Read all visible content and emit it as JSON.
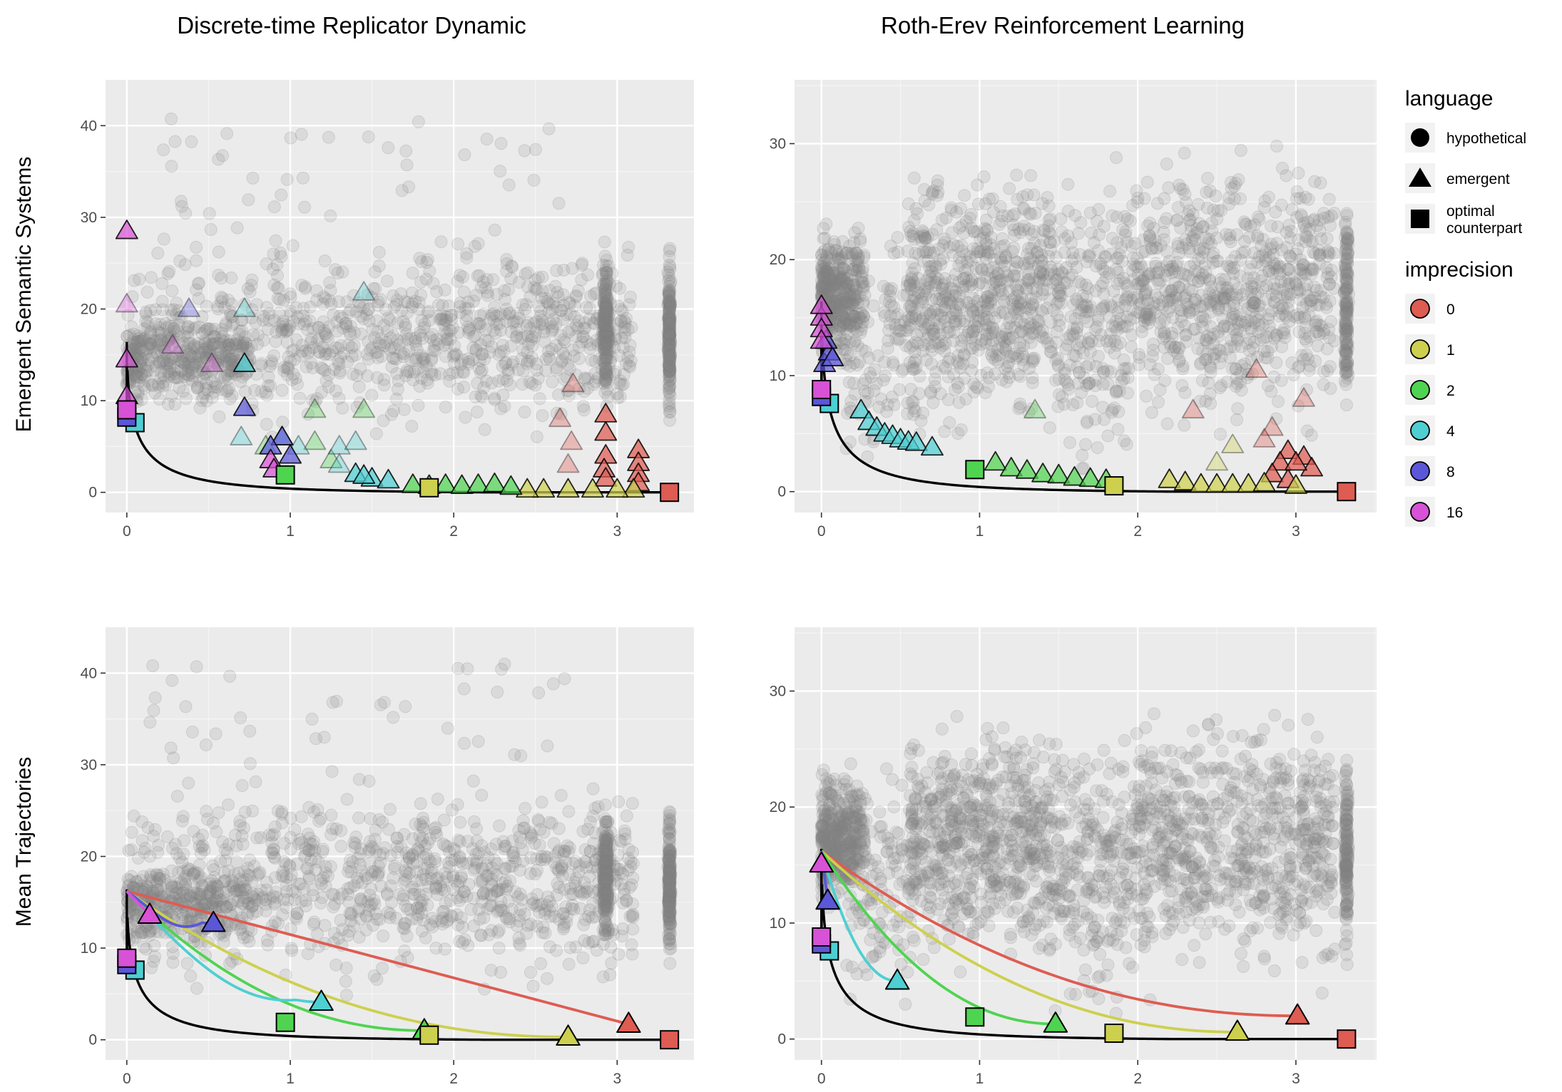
{
  "figure": {
    "column_titles": [
      "Discrete-time Replicator Dynamic",
      "Roth-Erev Reinforcement Learning"
    ],
    "row_titles": [
      "Emergent Semantic Systems",
      "Mean Trajectories"
    ]
  },
  "legend": {
    "language": {
      "title": "language",
      "items": [
        {
          "label": "hypothetical",
          "shape": "circle"
        },
        {
          "label": "emergent",
          "shape": "triangle"
        },
        {
          "label": "optimal counterpart",
          "lines": [
            "optimal",
            "counterpart"
          ],
          "shape": "square"
        }
      ]
    },
    "imprecision": {
      "title": "imprecision",
      "items": [
        {
          "label": "0",
          "color": "#DE5C52"
        },
        {
          "label": "1",
          "color": "#CDD04E"
        },
        {
          "label": "2",
          "color": "#4FD451"
        },
        {
          "label": "4",
          "color": "#4ECFD2"
        },
        {
          "label": "8",
          "color": "#5B57D8"
        },
        {
          "label": "16",
          "color": "#D752D6"
        }
      ]
    }
  },
  "colors": {
    "panel_background": "#EBEBEB",
    "grid": "#FFFFFF",
    "hypothetical_points": "#808080",
    "frontier_curve": "#000000"
  },
  "chart_data": [
    {
      "panel": "Discrete-time Replicator Dynamic / Emergent Semantic Systems",
      "type": "scatter",
      "xlim": [
        -0.13,
        3.47
      ],
      "ylim": [
        -2.2,
        45
      ],
      "xticks": [
        0,
        1,
        2,
        3
      ],
      "yticks": [
        0,
        10,
        20,
        30,
        40
      ],
      "cloud": "dr",
      "frontier": true,
      "optimal": [
        [
          3.32,
          0,
          0
        ],
        [
          1.85,
          0.5,
          1
        ],
        [
          0.97,
          1.9,
          2
        ],
        [
          0.05,
          7.6,
          4
        ],
        [
          0.0,
          8.2,
          8
        ],
        [
          0.0,
          9.0,
          16
        ]
      ],
      "emergent": [
        [
          2.93,
          6.5,
          0
        ],
        [
          2.93,
          8.5,
          0
        ],
        [
          2.93,
          4,
          0
        ],
        [
          2.92,
          2.5,
          0
        ],
        [
          2.93,
          1.5,
          0
        ],
        [
          3.13,
          4.6,
          0
        ],
        [
          3.13,
          3.2,
          0
        ],
        [
          3.13,
          2,
          0
        ],
        [
          3.13,
          1,
          0
        ],
        [
          2.73,
          11.8,
          0
        ],
        [
          2.65,
          8,
          0
        ],
        [
          2.72,
          5.5,
          0
        ],
        [
          2.7,
          3,
          0
        ],
        [
          3.1,
          0.3,
          1
        ],
        [
          3.0,
          0.3,
          1
        ],
        [
          2.85,
          0.3,
          1
        ],
        [
          2.7,
          0.3,
          1
        ],
        [
          2.55,
          0.3,
          1
        ],
        [
          2.45,
          0.3,
          1
        ],
        [
          1.75,
          0.8,
          2
        ],
        [
          1.85,
          0.7,
          2
        ],
        [
          1.95,
          0.8,
          2
        ],
        [
          2.05,
          0.7,
          2
        ],
        [
          2.15,
          0.8,
          2
        ],
        [
          2.25,
          0.9,
          2
        ],
        [
          2.35,
          0.6,
          2
        ],
        [
          1.15,
          9,
          2
        ],
        [
          1.45,
          9,
          2
        ],
        [
          1.15,
          5.5,
          2
        ],
        [
          0.85,
          5,
          2
        ],
        [
          1.25,
          3.5,
          2
        ],
        [
          1.45,
          21.8,
          4
        ],
        [
          0.72,
          20,
          4
        ],
        [
          0.72,
          14,
          4
        ],
        [
          0.7,
          6,
          4
        ],
        [
          0.95,
          6,
          4
        ],
        [
          1.05,
          5,
          4
        ],
        [
          1.3,
          5,
          4
        ],
        [
          1.4,
          5.5,
          4
        ],
        [
          1.3,
          3,
          4
        ],
        [
          1.4,
          2,
          4
        ],
        [
          1.5,
          1.5,
          4
        ],
        [
          1.6,
          1.3,
          4
        ],
        [
          1.45,
          1.8,
          4
        ],
        [
          0.38,
          20,
          8
        ],
        [
          0.72,
          9.2,
          8
        ],
        [
          0.95,
          6,
          8
        ],
        [
          0.88,
          5,
          8
        ],
        [
          1.0,
          4,
          8
        ],
        [
          0.0,
          28.5,
          16
        ],
        [
          0.0,
          20.5,
          16
        ],
        [
          0.0,
          14.5,
          16
        ],
        [
          0.0,
          10.5,
          16
        ],
        [
          0.28,
          16,
          16
        ],
        [
          0.52,
          14,
          16
        ],
        [
          0.88,
          3.5,
          16
        ],
        [
          0.9,
          2.5,
          16
        ]
      ],
      "faded_emergent": [
        [
          2.73,
          11.8,
          0
        ],
        [
          2.65,
          8,
          0
        ],
        [
          2.72,
          5.5,
          0
        ],
        [
          2.7,
          3,
          0
        ],
        [
          1.15,
          9,
          2
        ],
        [
          1.45,
          9,
          2
        ],
        [
          1.15,
          5.5,
          2
        ],
        [
          0.85,
          5,
          2
        ],
        [
          1.25,
          3.5,
          2
        ],
        [
          1.45,
          21.8,
          4
        ],
        [
          0.72,
          20,
          4
        ],
        [
          0.7,
          6,
          4
        ],
        [
          0.95,
          6,
          4
        ],
        [
          1.05,
          5,
          4
        ],
        [
          1.3,
          5,
          4
        ],
        [
          1.4,
          5.5,
          4
        ],
        [
          1.3,
          3,
          4
        ],
        [
          0.38,
          20,
          8
        ],
        [
          0.0,
          20.5,
          16
        ],
        [
          0.28,
          16,
          16
        ],
        [
          0.52,
          14,
          16
        ]
      ]
    },
    {
      "panel": "Roth-Erev Reinforcement Learning / Emergent Semantic Systems",
      "type": "scatter",
      "xlim": [
        -0.17,
        3.51
      ],
      "ylim": [
        -1.8,
        35.5
      ],
      "xticks": [
        0,
        1,
        2,
        3
      ],
      "yticks": [
        0,
        10,
        20,
        30
      ],
      "cloud": "re",
      "frontier": true,
      "optimal": [
        [
          3.32,
          0,
          0
        ],
        [
          1.85,
          0.5,
          1
        ],
        [
          0.97,
          1.9,
          2
        ],
        [
          0.05,
          7.6,
          4
        ],
        [
          0.0,
          8.2,
          8
        ],
        [
          0.0,
          8.8,
          16
        ]
      ],
      "emergent": [
        [
          2.75,
          10.5,
          0
        ],
        [
          2.35,
          7,
          0
        ],
        [
          3.05,
          8,
          0
        ],
        [
          2.85,
          5.5,
          0
        ],
        [
          2.8,
          4.5,
          0
        ],
        [
          2.95,
          3.5,
          0
        ],
        [
          3.05,
          3,
          0
        ],
        [
          2.9,
          2.5,
          0
        ],
        [
          3.1,
          2,
          0
        ],
        [
          2.85,
          1.5,
          0
        ],
        [
          2.95,
          1,
          0
        ],
        [
          3.0,
          2.5,
          0
        ],
        [
          2.6,
          4,
          1
        ],
        [
          2.5,
          2.5,
          1
        ],
        [
          2.2,
          1,
          1
        ],
        [
          2.3,
          0.8,
          1
        ],
        [
          2.4,
          0.6,
          1
        ],
        [
          2.5,
          0.6,
          1
        ],
        [
          2.6,
          0.6,
          1
        ],
        [
          2.7,
          0.6,
          1
        ],
        [
          2.8,
          0.7,
          1
        ],
        [
          3.0,
          0.5,
          1
        ],
        [
          1.1,
          2.5,
          2
        ],
        [
          1.2,
          2,
          2
        ],
        [
          1.3,
          1.8,
          2
        ],
        [
          1.4,
          1.5,
          2
        ],
        [
          1.5,
          1.4,
          2
        ],
        [
          1.6,
          1.2,
          2
        ],
        [
          1.7,
          1.1,
          2
        ],
        [
          1.8,
          1.0,
          2
        ],
        [
          1.35,
          7,
          2
        ],
        [
          0.25,
          7,
          4
        ],
        [
          0.3,
          6,
          4
        ],
        [
          0.35,
          5.5,
          4
        ],
        [
          0.4,
          5,
          4
        ],
        [
          0.45,
          4.8,
          4
        ],
        [
          0.5,
          4.5,
          4
        ],
        [
          0.55,
          4.3,
          4
        ],
        [
          0.6,
          4.2,
          4
        ],
        [
          0.7,
          3.8,
          4
        ],
        [
          0.02,
          11,
          8
        ],
        [
          0.05,
          12,
          8
        ],
        [
          0.07,
          11.5,
          8
        ],
        [
          0.03,
          13,
          8
        ],
        [
          0.0,
          15,
          16
        ],
        [
          0.0,
          14,
          16
        ],
        [
          0.0,
          16,
          16
        ],
        [
          0.0,
          13,
          16
        ]
      ],
      "faded_emergent": [
        [
          2.75,
          10.5,
          0
        ],
        [
          2.35,
          7,
          0
        ],
        [
          3.05,
          8,
          0
        ],
        [
          2.85,
          5.5,
          0
        ],
        [
          2.8,
          4.5,
          0
        ],
        [
          2.6,
          4,
          1
        ],
        [
          2.5,
          2.5,
          1
        ],
        [
          1.35,
          7,
          2
        ]
      ]
    },
    {
      "panel": "Discrete-time Replicator Dynamic / Mean Trajectories",
      "type": "line",
      "xlim": [
        -0.13,
        3.47
      ],
      "ylim": [
        -2.2,
        45
      ],
      "xticks": [
        0,
        1,
        2,
        3
      ],
      "yticks": [
        0,
        10,
        20,
        30,
        40
      ],
      "cloud": "dr",
      "frontier": true,
      "optimal": [
        [
          3.32,
          0,
          0
        ],
        [
          1.85,
          0.5,
          1
        ],
        [
          0.97,
          1.9,
          2
        ],
        [
          0.05,
          7.6,
          4
        ],
        [
          0.0,
          8.2,
          8
        ],
        [
          0.0,
          8.9,
          16
        ]
      ],
      "end_markers": [
        [
          3.07,
          1.7,
          0
        ],
        [
          2.7,
          0.3,
          1
        ],
        [
          1.82,
          1.0,
          2
        ],
        [
          1.19,
          4.1,
          4
        ],
        [
          0.53,
          12.7,
          8
        ],
        [
          0.14,
          13.6,
          16
        ]
      ],
      "trajectories": [
        {
          "imprecision": 0,
          "start": [
            0.0,
            16.2
          ],
          "end": [
            3.07,
            1.7
          ],
          "shape": "linear"
        },
        {
          "imprecision": 1,
          "start": [
            0.0,
            16.2
          ],
          "end": [
            2.7,
            0.3
          ],
          "shape": "power"
        },
        {
          "imprecision": 2,
          "start": [
            0.0,
            16.2
          ],
          "end": [
            1.82,
            1.0
          ],
          "shape": "power"
        },
        {
          "imprecision": 4,
          "start": [
            0.0,
            16.2
          ],
          "end": [
            1.19,
            4.1
          ],
          "shape": "dip"
        },
        {
          "imprecision": 8,
          "start": [
            0.0,
            16.2
          ],
          "end": [
            0.53,
            12.7
          ],
          "shape": "dip"
        },
        {
          "imprecision": 16,
          "start": [
            0.0,
            16.2
          ],
          "end": [
            0.14,
            13.6
          ],
          "shape": "linear"
        }
      ]
    },
    {
      "panel": "Roth-Erev Reinforcement Learning / Mean Trajectories",
      "type": "line",
      "xlim": [
        -0.17,
        3.51
      ],
      "ylim": [
        -1.8,
        35.5
      ],
      "xticks": [
        0,
        1,
        2,
        3
      ],
      "yticks": [
        0,
        10,
        20,
        30
      ],
      "cloud": "re",
      "frontier": true,
      "optimal": [
        [
          3.32,
          0,
          0
        ],
        [
          1.85,
          0.5,
          1
        ],
        [
          0.97,
          1.9,
          2
        ],
        [
          0.05,
          7.6,
          4
        ],
        [
          0.0,
          8.2,
          8
        ],
        [
          0.0,
          8.8,
          16
        ]
      ],
      "end_markers": [
        [
          3.01,
          2.0,
          0
        ],
        [
          2.63,
          0.6,
          1
        ],
        [
          1.48,
          1.3,
          2
        ],
        [
          0.48,
          5.0,
          4
        ],
        [
          0.04,
          11.9,
          8
        ],
        [
          0.0,
          15.1,
          16
        ]
      ],
      "trajectories": [
        {
          "imprecision": 0,
          "start": [
            0.0,
            16.2
          ],
          "end": [
            3.01,
            2.0
          ],
          "shape": "power"
        },
        {
          "imprecision": 1,
          "start": [
            0.0,
            16.2
          ],
          "end": [
            2.63,
            0.6
          ],
          "shape": "power"
        },
        {
          "imprecision": 2,
          "start": [
            0.0,
            16.2
          ],
          "end": [
            1.48,
            1.3
          ],
          "shape": "power"
        },
        {
          "imprecision": 4,
          "start": [
            0.0,
            16.2
          ],
          "end": [
            0.48,
            5.0
          ],
          "shape": "power"
        },
        {
          "imprecision": 8,
          "start": [
            0.0,
            16.2
          ],
          "end": [
            0.04,
            11.9
          ],
          "shape": "linear"
        },
        {
          "imprecision": 16,
          "start": [
            0.0,
            16.2
          ],
          "end": [
            0.0,
            15.1
          ],
          "shape": "linear"
        }
      ]
    }
  ]
}
